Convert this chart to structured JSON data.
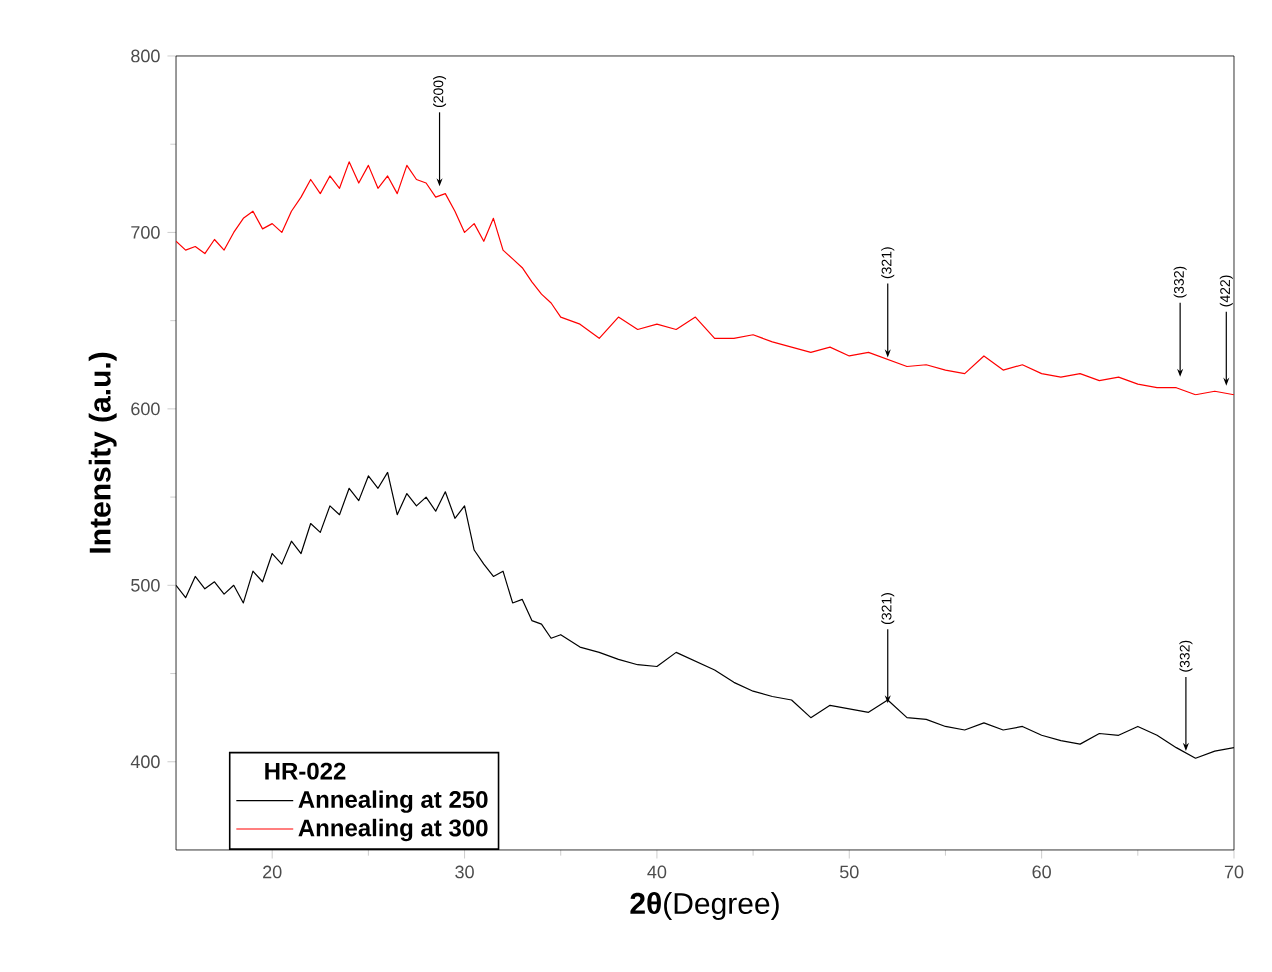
{
  "chart_data": {
    "type": "line",
    "xlabel": "**2θ**(Degree)",
    "ylabel": "Intensity (a.u.)",
    "legend_title": "HR-022",
    "xlim": [
      15,
      70
    ],
    "ylim": [
      350,
      800
    ],
    "xticks": [
      20,
      30,
      40,
      50,
      60,
      70
    ],
    "yticks": [
      400,
      500,
      600,
      700,
      800
    ],
    "legend": "bottom left",
    "grid": false,
    "marker": "none",
    "line_style": "solid",
    "series": [
      {
        "name": "Annealing at 250",
        "color": "#000000",
        "x": [
          15,
          15.5,
          16,
          16.5,
          17,
          17.5,
          18,
          18.5,
          19,
          19.5,
          20,
          20.5,
          21,
          21.5,
          22,
          22.5,
          23,
          23.5,
          24,
          24.5,
          25,
          25.5,
          26,
          26.5,
          27,
          27.5,
          28,
          28.5,
          29,
          29.5,
          30,
          30.5,
          31,
          31.5,
          32,
          32.5,
          33,
          33.5,
          34,
          34.5,
          35,
          36,
          37,
          38,
          39,
          40,
          41,
          42,
          43,
          44,
          45,
          46,
          47,
          48,
          49,
          50,
          51,
          52,
          53,
          54,
          55,
          56,
          57,
          58,
          59,
          60,
          61,
          62,
          63,
          64,
          65,
          66,
          67,
          68,
          69,
          70
        ],
        "values": [
          500,
          493,
          505,
          498,
          502,
          495,
          500,
          490,
          508,
          502,
          518,
          512,
          525,
          518,
          535,
          530,
          545,
          540,
          555,
          548,
          562,
          555,
          564,
          540,
          552,
          545,
          550,
          542,
          553,
          538,
          545,
          520,
          512,
          505,
          508,
          490,
          492,
          480,
          478,
          470,
          472,
          465,
          462,
          458,
          455,
          454,
          462,
          457,
          452,
          445,
          440,
          437,
          435,
          425,
          432,
          430,
          428,
          435,
          425,
          424,
          420,
          418,
          422,
          418,
          420,
          415,
          412,
          410,
          416,
          415,
          420,
          415,
          408,
          402,
          406,
          408
        ]
      },
      {
        "name": "Annealing at 300",
        "color": "#ff0000",
        "x": [
          15,
          15.5,
          16,
          16.5,
          17,
          17.5,
          18,
          18.5,
          19,
          19.5,
          20,
          20.5,
          21,
          21.5,
          22,
          22.5,
          23,
          23.5,
          24,
          24.5,
          25,
          25.5,
          26,
          26.5,
          27,
          27.5,
          28,
          28.5,
          29,
          29.5,
          30,
          30.5,
          31,
          31.5,
          32,
          32.5,
          33,
          33.5,
          34,
          34.5,
          35,
          36,
          37,
          38,
          39,
          40,
          41,
          42,
          43,
          44,
          45,
          46,
          47,
          48,
          49,
          50,
          51,
          52,
          53,
          54,
          55,
          56,
          57,
          58,
          59,
          60,
          61,
          62,
          63,
          64,
          65,
          66,
          67,
          68,
          69,
          70
        ],
        "values": [
          695,
          690,
          692,
          688,
          696,
          690,
          700,
          708,
          712,
          702,
          705,
          700,
          712,
          720,
          730,
          722,
          732,
          725,
          740,
          728,
          738,
          725,
          732,
          722,
          738,
          730,
          728,
          720,
          722,
          712,
          700,
          705,
          695,
          708,
          690,
          685,
          680,
          672,
          665,
          660,
          652,
          648,
          640,
          652,
          645,
          648,
          645,
          652,
          640,
          640,
          642,
          638,
          635,
          632,
          635,
          630,
          632,
          628,
          624,
          625,
          622,
          620,
          630,
          622,
          625,
          620,
          618,
          620,
          616,
          618,
          614,
          612,
          612,
          608,
          610,
          608
        ]
      }
    ],
    "annotations": [
      {
        "text": "(200)",
        "x": 28.7,
        "y": 725
      },
      {
        "text": "(321)",
        "x": 52,
        "y": 628
      },
      {
        "text": "(332)",
        "x": 67.2,
        "y": 617
      },
      {
        "text": "(422)",
        "x": 69.6,
        "y": 612
      },
      {
        "text": "(321)",
        "x": 52,
        "y": 432
      },
      {
        "text": "(332)",
        "x": 67.5,
        "y": 405
      }
    ]
  }
}
